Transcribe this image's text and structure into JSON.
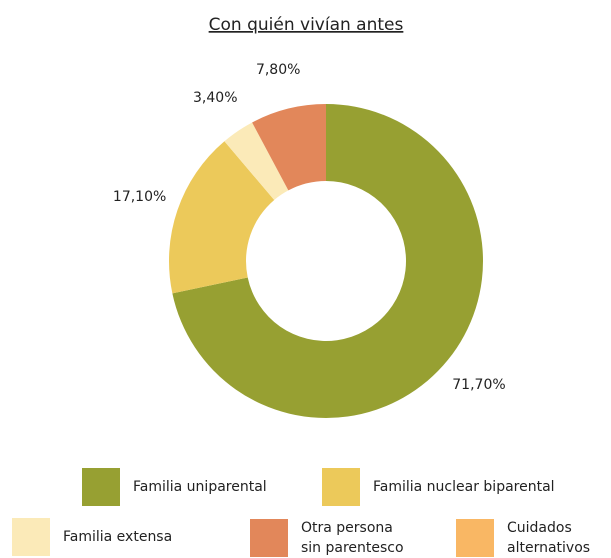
{
  "chart_data": {
    "type": "donut",
    "title": "Con quién vivían antes",
    "series": [
      {
        "name": "Familia uniparental",
        "color": "#97a032",
        "values": [
          71.7
        ]
      },
      {
        "name": "Familia nuclear biparental",
        "color": "#ecc95a",
        "values": [
          17.1
        ]
      },
      {
        "name": "Familia extensa",
        "color": "#fbeab8",
        "values": [
          3.4
        ]
      },
      {
        "name": "Otra persona sin parentesco",
        "color": "#e2875a",
        "values": [
          7.8
        ]
      },
      {
        "name": "Cuidados alternativos",
        "color": "#f9b764",
        "values": [
          0
        ]
      }
    ],
    "value_labels": [
      "71,70%",
      "17,10%",
      "3,40%",
      "7,80%",
      null
    ]
  }
}
